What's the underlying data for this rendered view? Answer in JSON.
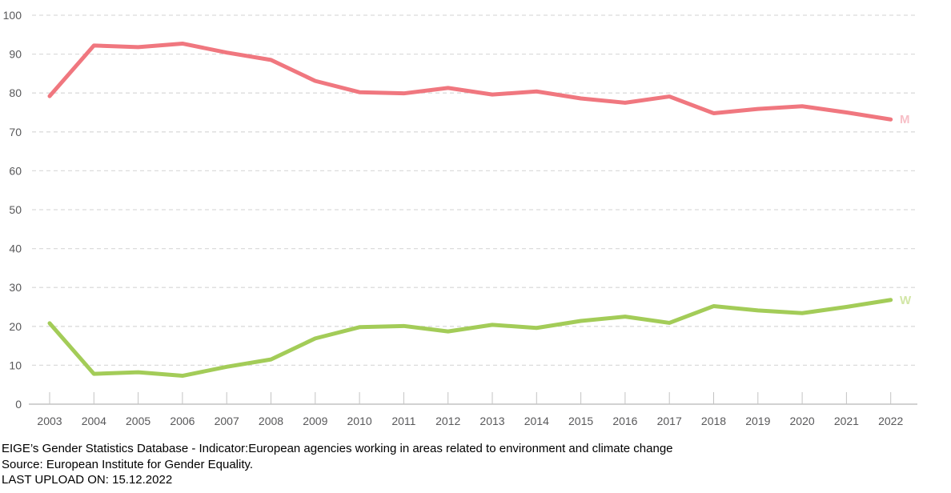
{
  "chart_data": {
    "type": "line",
    "x": [
      "2003",
      "2004",
      "2005",
      "2006",
      "2007",
      "2008",
      "2009",
      "2010",
      "2011",
      "2012",
      "2013",
      "2014",
      "2015",
      "2016",
      "2017",
      "2018",
      "2019",
      "2020",
      "2021",
      "2022"
    ],
    "series": [
      {
        "name": "Men",
        "end_label": "M",
        "color": "#F0777F",
        "end_label_color": "#F7BFC7",
        "values": [
          79.2,
          92.2,
          91.8,
          92.7,
          90.4,
          88.5,
          83.1,
          80.2,
          79.9,
          81.3,
          79.6,
          80.4,
          78.6,
          77.5,
          79.1,
          74.8,
          75.9,
          76.6,
          75.0,
          73.2
        ]
      },
      {
        "name": "Women",
        "end_label": "W",
        "color": "#A3CC58",
        "end_label_color": "#D2E6A6",
        "values": [
          20.8,
          7.8,
          8.2,
          7.3,
          9.6,
          11.5,
          16.9,
          19.8,
          20.1,
          18.7,
          20.4,
          19.6,
          21.4,
          22.5,
          20.9,
          25.2,
          24.1,
          23.4,
          25.0,
          26.8
        ]
      }
    ],
    "title": "",
    "xlabel": "",
    "ylabel": "",
    "ylim": [
      0,
      100
    ],
    "ytick_step": 10,
    "yticks": [
      0,
      10,
      20,
      30,
      40,
      50,
      60,
      70,
      80,
      90,
      100
    ],
    "grid": "horizontal-dashed",
    "legend_position": "line-end"
  },
  "axis_style": {
    "grid_color": "#DCDCDC",
    "axis_line_color": "#C3C3C3",
    "tick_color": "#C3C3C3",
    "label_color": "#58585A"
  },
  "footer": {
    "indicator": "EIGE’s Gender Statistics Database - Indicator:European agencies working in areas related to environment and climate change",
    "source": "Source: European Institute for Gender Equality.",
    "last_upload": "LAST UPLOAD ON: 15.12.2022"
  }
}
